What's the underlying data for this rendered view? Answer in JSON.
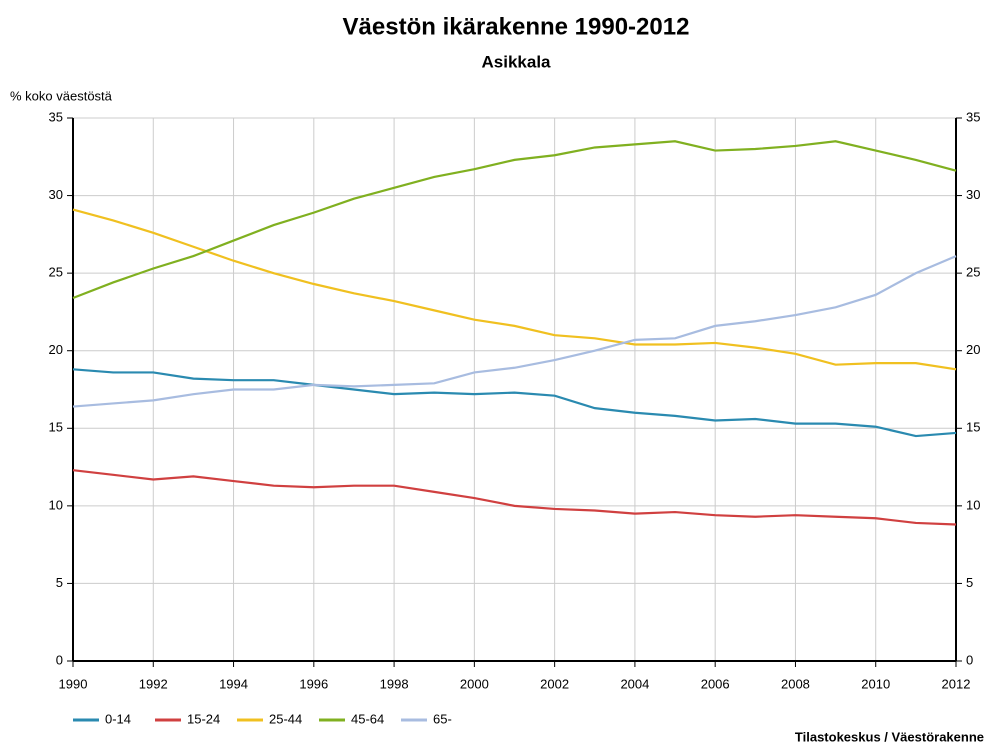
{
  "chart_data": {
    "type": "line",
    "title": "Väestön ikärakenne 1990-2012",
    "subtitle": "Asikkala",
    "ylabel": "% koko väestöstä",
    "source": "Tilastokeskus / Väestörakenne",
    "x": [
      1990,
      1991,
      1992,
      1993,
      1994,
      1995,
      1996,
      1997,
      1998,
      1999,
      2000,
      2001,
      2002,
      2003,
      2004,
      2005,
      2006,
      2007,
      2008,
      2009,
      2010,
      2011,
      2012
    ],
    "xlim": [
      1990,
      2012
    ],
    "xticks": [
      1990,
      1992,
      1994,
      1996,
      1998,
      2000,
      2002,
      2004,
      2006,
      2008,
      2010,
      2012
    ],
    "ylim": [
      0,
      35
    ],
    "yticks": [
      0,
      5,
      10,
      15,
      20,
      25,
      30,
      35
    ],
    "grid": true,
    "legend": "bottom",
    "series": [
      {
        "name": "0-14",
        "color": "#2a8ab0",
        "values": [
          18.8,
          18.6,
          18.6,
          18.2,
          18.1,
          18.1,
          17.8,
          17.5,
          17.2,
          17.3,
          17.2,
          17.3,
          17.1,
          16.3,
          16.0,
          15.8,
          15.5,
          15.6,
          15.3,
          15.3,
          15.1,
          14.5,
          14.7
        ]
      },
      {
        "name": "15-24",
        "color": "#d04040",
        "values": [
          12.3,
          12.0,
          11.7,
          11.9,
          11.6,
          11.3,
          11.2,
          11.3,
          11.3,
          10.9,
          10.5,
          10.0,
          9.8,
          9.7,
          9.5,
          9.6,
          9.4,
          9.3,
          9.4,
          9.3,
          9.2,
          8.9,
          8.8
        ]
      },
      {
        "name": "25-44",
        "color": "#f0c020",
        "values": [
          29.1,
          28.4,
          27.6,
          26.7,
          25.8,
          25.0,
          24.3,
          23.7,
          23.2,
          22.6,
          22.0,
          21.6,
          21.0,
          20.8,
          20.4,
          20.4,
          20.5,
          20.2,
          19.8,
          19.1,
          19.2,
          19.2,
          18.8
        ]
      },
      {
        "name": "45-64",
        "color": "#80b020",
        "values": [
          23.4,
          24.4,
          25.3,
          26.1,
          27.1,
          28.1,
          28.9,
          29.8,
          30.5,
          31.2,
          31.7,
          32.3,
          32.6,
          33.1,
          33.3,
          33.5,
          32.9,
          33.0,
          33.2,
          33.5,
          32.9,
          32.3,
          31.6
        ]
      },
      {
        "name": "65-",
        "color": "#a8bce0",
        "values": [
          16.4,
          16.6,
          16.8,
          17.2,
          17.5,
          17.5,
          17.8,
          17.7,
          17.8,
          17.9,
          18.6,
          18.9,
          19.4,
          20.0,
          20.7,
          20.8,
          21.6,
          21.9,
          22.3,
          22.8,
          23.6,
          25.0,
          26.1
        ]
      }
    ]
  }
}
